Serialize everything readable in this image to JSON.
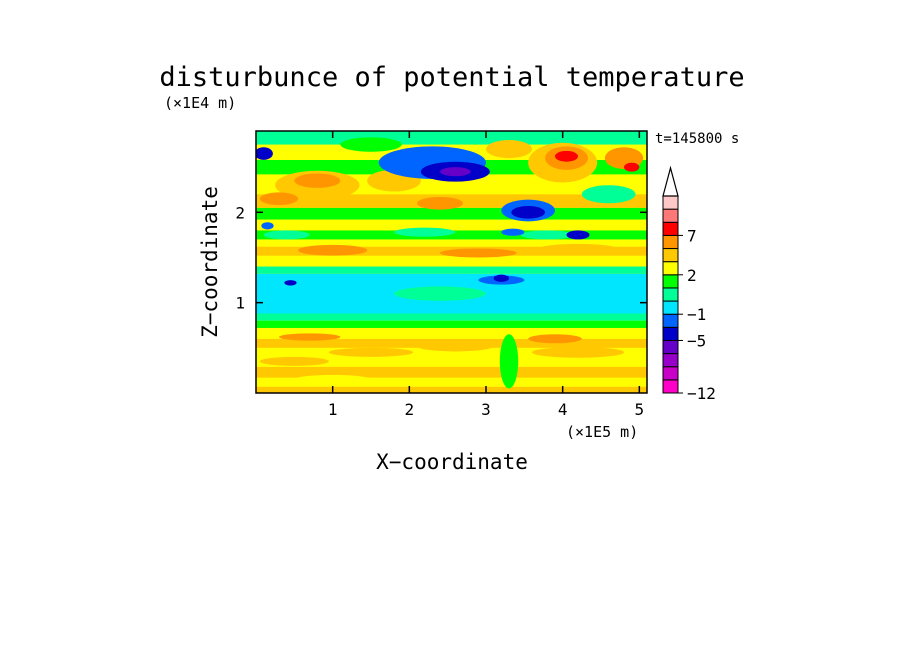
{
  "chart_data": {
    "type": "heatmap",
    "title": "disturbunce of potential temperature",
    "xlabel": "X−coordinate",
    "ylabel": "Z−coordinate",
    "x_scale_label": "(×1E5 m)",
    "y_scale_label": "(×1E4 m)",
    "time_label": "t=145800 s",
    "xlim": [
      0,
      5.1
    ],
    "ylim": [
      0,
      2.9
    ],
    "x_ticks": [
      1,
      2,
      3,
      4,
      5
    ],
    "x_tick_labels": [
      "1",
      "2",
      "3",
      "4",
      "5"
    ],
    "y_ticks": [
      1,
      2
    ],
    "y_tick_labels": [
      "1",
      "2"
    ],
    "colorbar": {
      "levels": [
        -12,
        -10,
        -8,
        -6,
        -5,
        -3,
        -1,
        0,
        1,
        2,
        3,
        5,
        7,
        9,
        11
      ],
      "labeled_values": [
        -12,
        -5,
        -1,
        2,
        7
      ],
      "labels": [
        "−12",
        "−5",
        "−1",
        "2",
        "7"
      ],
      "colors": [
        "#ff00c8",
        "#c800c8",
        "#9600c8",
        "#6400c8",
        "#0000c8",
        "#0064ff",
        "#00e6ff",
        "#00ff96",
        "#00ff00",
        "#ffff00",
        "#ffc800",
        "#ff9600",
        "#ff0000",
        "#ff7878",
        "#ffc8c8"
      ],
      "extend": "max"
    },
    "bands": [
      {
        "z": [
          0.0,
          0.1
        ],
        "dominant_range": "0 to 2",
        "note": "orange/yellow"
      },
      {
        "z": [
          0.1,
          0.75
        ],
        "dominant_range": "0 to 3",
        "note": "yellow with orange streaks"
      },
      {
        "z": [
          0.75,
          1.3
        ],
        "dominant_range": "-1 to 0",
        "note": "cyan/green neutral layer"
      },
      {
        "z": [
          1.3,
          1.85
        ],
        "dominant_range": "0 to 3",
        "note": "alternating yellow/green/orange"
      },
      {
        "z": [
          1.85,
          2.9
        ],
        "dominant_range": "-6 to 9",
        "note": "strong waves, blue and red cells"
      }
    ],
    "extremes": [
      {
        "x": 2.6,
        "z": 2.45,
        "value_range": "-6 to -5",
        "note": "dark blue trough"
      },
      {
        "x": 3.55,
        "z": 2.0,
        "value_range": "-6 to -5",
        "note": "dark blue trough"
      },
      {
        "x": 4.05,
        "z": 2.6,
        "value_range": "5 to 9",
        "note": "red/pink core"
      },
      {
        "x": 0.85,
        "z": 2.35,
        "value_range": "3 to 5",
        "note": "orange core"
      }
    ]
  }
}
